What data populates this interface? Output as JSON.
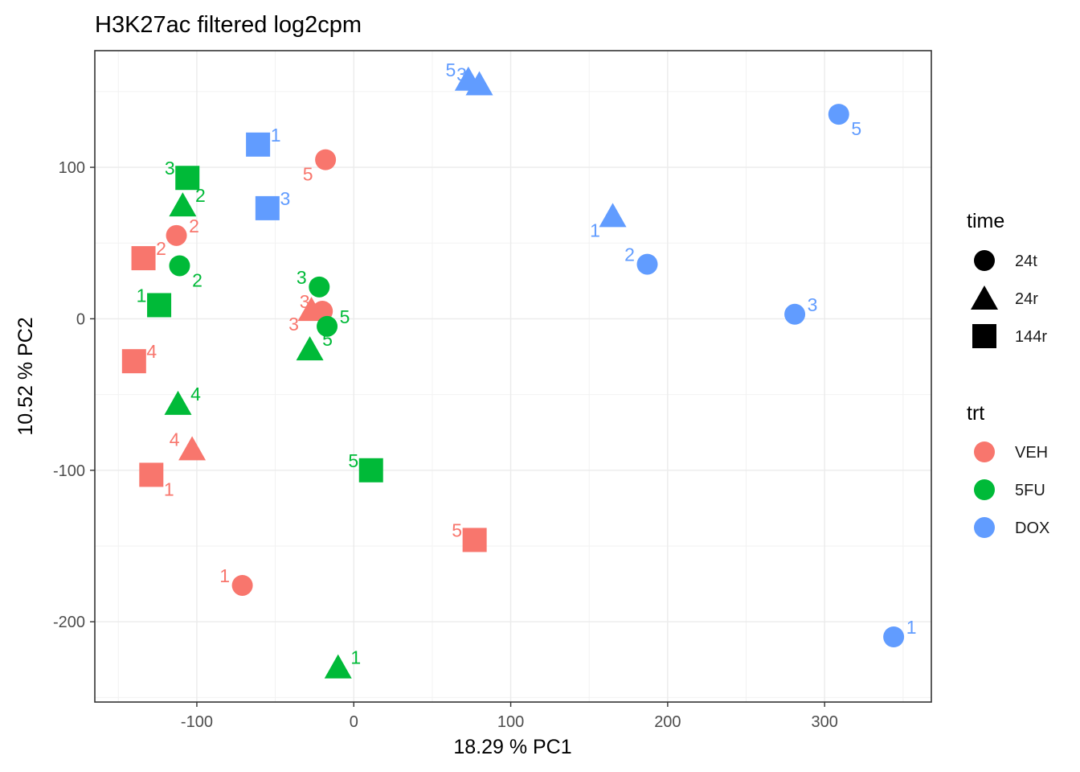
{
  "chart_data": {
    "type": "scatter",
    "title": "H3K27ac filtered log2cpm",
    "xlabel": "18.29 % PC1",
    "ylabel": "10.52 % PC2",
    "xlim": [
      -165,
      368
    ],
    "ylim": [
      -253,
      177
    ],
    "xticks": [
      -100,
      0,
      100,
      200,
      300
    ],
    "yticks": [
      -200,
      -100,
      0,
      100
    ],
    "xtick_labels": [
      "-100",
      "0",
      "100",
      "200",
      "300"
    ],
    "ytick_labels": [
      "-200",
      "-100",
      "0",
      "100"
    ],
    "grid": true,
    "legend_position": "right",
    "legend": {
      "time": {
        "title": "time",
        "items": [
          {
            "label": "24t",
            "shape": "circle"
          },
          {
            "label": "24r",
            "shape": "triangle"
          },
          {
            "label": "144r",
            "shape": "square"
          }
        ]
      },
      "trt": {
        "title": "trt",
        "items": [
          {
            "label": "VEH",
            "color": "#F8766D"
          },
          {
            "label": "5FU",
            "color": "#00BA38"
          },
          {
            "label": "DOX",
            "color": "#619CFF"
          }
        ]
      }
    },
    "points": [
      {
        "x": -71,
        "y": -176,
        "trt": "VEH",
        "time": "24t",
        "label": "1"
      },
      {
        "x": -113,
        "y": 55,
        "trt": "VEH",
        "time": "24t",
        "label": "2"
      },
      {
        "x": -20,
        "y": 5,
        "trt": "VEH",
        "time": "24t",
        "label": "3"
      },
      {
        "x": -18,
        "y": 105,
        "trt": "VEH",
        "time": "24t",
        "label": "5"
      },
      {
        "x": -27,
        "y": 6,
        "trt": "VEH",
        "time": "24r",
        "label": "3"
      },
      {
        "x": -103,
        "y": -86,
        "trt": "VEH",
        "time": "24r",
        "label": "4"
      },
      {
        "x": -129,
        "y": -103,
        "trt": "VEH",
        "time": "144r",
        "label": "1"
      },
      {
        "x": -134,
        "y": 40,
        "trt": "VEH",
        "time": "144r",
        "label": "2"
      },
      {
        "x": -140,
        "y": -28,
        "trt": "VEH",
        "time": "144r",
        "label": "4"
      },
      {
        "x": 77,
        "y": -146,
        "trt": "VEH",
        "time": "144r",
        "label": "5"
      },
      {
        "x": -111,
        "y": 35,
        "trt": "5FU",
        "time": "24t",
        "label": "2"
      },
      {
        "x": -22,
        "y": 21,
        "trt": "5FU",
        "time": "24t",
        "label": "3"
      },
      {
        "x": -17,
        "y": -5,
        "trt": "5FU",
        "time": "24t",
        "label": "5"
      },
      {
        "x": -10,
        "y": -230,
        "trt": "5FU",
        "time": "24r",
        "label": "1"
      },
      {
        "x": -109,
        "y": 75,
        "trt": "5FU",
        "time": "24r",
        "label": "2"
      },
      {
        "x": -112,
        "y": -56,
        "trt": "5FU",
        "time": "24r",
        "label": "4"
      },
      {
        "x": -28,
        "y": -20,
        "trt": "5FU",
        "time": "24r",
        "label": "5"
      },
      {
        "x": -124,
        "y": 9,
        "trt": "5FU",
        "time": "144r",
        "label": "1"
      },
      {
        "x": -106,
        "y": 93,
        "trt": "5FU",
        "time": "144r",
        "label": "3"
      },
      {
        "x": 11,
        "y": -100,
        "trt": "5FU",
        "time": "144r",
        "label": "5"
      },
      {
        "x": 344,
        "y": -210,
        "trt": "DOX",
        "time": "24t",
        "label": "1"
      },
      {
        "x": 187,
        "y": 36,
        "trt": "DOX",
        "time": "24t",
        "label": "2"
      },
      {
        "x": 281,
        "y": 3,
        "trt": "DOX",
        "time": "24t",
        "label": "3"
      },
      {
        "x": 309,
        "y": 135,
        "trt": "DOX",
        "time": "24t",
        "label": "5"
      },
      {
        "x": 165,
        "y": 68,
        "trt": "DOX",
        "time": "24r",
        "label": "1"
      },
      {
        "x": 80,
        "y": 155,
        "trt": "DOX",
        "time": "24r",
        "label": "3"
      },
      {
        "x": 73,
        "y": 158,
        "trt": "DOX",
        "time": "24r",
        "label": "5"
      },
      {
        "x": -61,
        "y": 115,
        "trt": "DOX",
        "time": "144r",
        "label": "1"
      },
      {
        "x": -55,
        "y": 73,
        "trt": "DOX",
        "time": "144r",
        "label": "3"
      }
    ]
  }
}
